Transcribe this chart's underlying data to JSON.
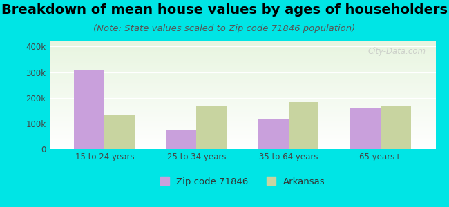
{
  "title": "Breakdown of mean house values by ages of householders",
  "subtitle": "(Note: State values scaled to Zip code 71846 population)",
  "categories": [
    "15 to 24 years",
    "25 to 34 years",
    "35 to 64 years",
    "65 years+"
  ],
  "zip_values": [
    310000,
    72000,
    117000,
    162000
  ],
  "state_values": [
    135000,
    168000,
    182000,
    170000
  ],
  "zip_color": "#c9a0dc",
  "state_color": "#c8d4a0",
  "zip_label": "Zip code 71846",
  "state_label": "Arkansas",
  "ylim": [
    0,
    420000
  ],
  "yticks": [
    0,
    100000,
    200000,
    300000,
    400000
  ],
  "ytick_labels": [
    "0",
    "100k",
    "200k",
    "300k",
    "400k"
  ],
  "background_color": "#00e5e5",
  "title_fontsize": 14,
  "subtitle_fontsize": 9.5,
  "watermark": "City-Data.com",
  "bar_width": 0.33
}
